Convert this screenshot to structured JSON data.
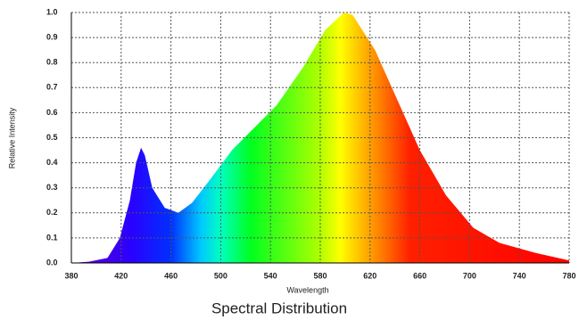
{
  "chart_data": {
    "type": "area",
    "title": "Spectral Distribution",
    "x_label": "Wavelength",
    "y_label": "Relative Intensity",
    "x": [
      380,
      394,
      409,
      419,
      427,
      432,
      436,
      439,
      445,
      455,
      466,
      477,
      491,
      509,
      531,
      545,
      566,
      584,
      599,
      606,
      624,
      642,
      660,
      681,
      703,
      724,
      753,
      780
    ],
    "values": [
      0.0,
      0.005,
      0.02,
      0.1,
      0.25,
      0.4,
      0.46,
      0.43,
      0.3,
      0.22,
      0.2,
      0.24,
      0.33,
      0.45,
      0.56,
      0.63,
      0.78,
      0.93,
      1.0,
      0.99,
      0.85,
      0.65,
      0.45,
      0.27,
      0.14,
      0.08,
      0.04,
      0.01
    ],
    "xlim": [
      380,
      780
    ],
    "xticks": [
      380,
      420,
      460,
      500,
      540,
      580,
      620,
      660,
      700,
      740,
      780
    ],
    "ylim": [
      0,
      1
    ],
    "yticks": [
      {
        "value": 0,
        "label": "0.0"
      },
      0.1,
      0.2,
      0.3,
      0.4,
      0.5,
      0.6,
      0.7,
      0.8,
      0.9,
      {
        "value": 1,
        "label": "1.0"
      }
    ],
    "grid": true
  }
}
